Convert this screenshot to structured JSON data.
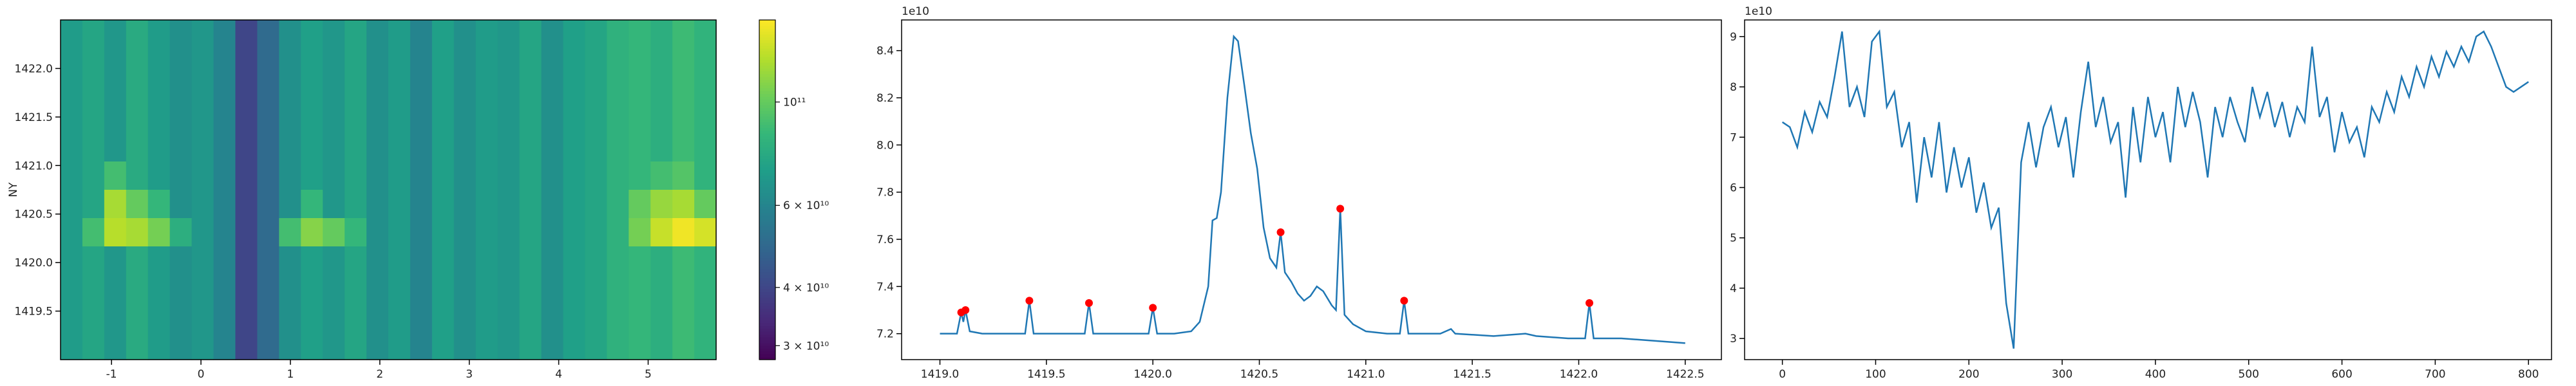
{
  "chart_data": [
    {
      "type": "heatmap",
      "ylabel": "NY",
      "colormap": "viridis",
      "color_scale": "log",
      "xlim": [
        -1.57,
        5.76
      ],
      "ylim": [
        1419.0,
        1422.5
      ],
      "xticks": [
        -1,
        0,
        1,
        2,
        3,
        4,
        5
      ],
      "yticks": [
        1419.5,
        {
          "value": 1420,
          "label": "1420.0"
        },
        1420.5,
        {
          "value": 1421,
          "label": "1421.0"
        },
        1421.5,
        {
          "value": 1422,
          "label": "1422.0"
        }
      ],
      "clim": [
        28000000000.0,
        150000000000.0
      ],
      "colorbar_ticks": [
        {
          "value": 30000000000.0,
          "label": "3 × 10¹⁰"
        },
        {
          "value": 40000000000.0,
          "label": "4 × 10¹⁰"
        },
        {
          "value": 60000000000.0,
          "label": "6 × 10¹⁰"
        },
        {
          "value": 100000000000.0,
          "label": "10¹¹"
        }
      ],
      "z": [
        [
          70000000000.0,
          75000000000.0,
          68000000000.0,
          78000000000.0,
          70000000000.0,
          65000000000.0,
          68000000000.0,
          60000000000.0,
          40000000000.0,
          50000000000.0,
          65000000000.0,
          72000000000.0,
          68000000000.0,
          75000000000.0,
          65000000000.0,
          70000000000.0,
          60000000000.0,
          72000000000.0,
          65000000000.0,
          70000000000.0,
          68000000000.0,
          75000000000.0,
          65000000000.0,
          72000000000.0,
          75000000000.0,
          82000000000.0,
          85000000000.0,
          80000000000.0,
          88000000000.0,
          83000000000.0
        ],
        [
          70000000000.0,
          75000000000.0,
          68000000000.0,
          78000000000.0,
          70000000000.0,
          65000000000.0,
          68000000000.0,
          60000000000.0,
          40000000000.0,
          50000000000.0,
          65000000000.0,
          72000000000.0,
          68000000000.0,
          75000000000.0,
          65000000000.0,
          70000000000.0,
          60000000000.0,
          72000000000.0,
          65000000000.0,
          70000000000.0,
          68000000000.0,
          75000000000.0,
          65000000000.0,
          72000000000.0,
          75000000000.0,
          82000000000.0,
          85000000000.0,
          80000000000.0,
          88000000000.0,
          83000000000.0
        ],
        [
          70000000000.0,
          75000000000.0,
          68000000000.0,
          78000000000.0,
          70000000000.0,
          65000000000.0,
          68000000000.0,
          60000000000.0,
          40000000000.0,
          50000000000.0,
          65000000000.0,
          72000000000.0,
          68000000000.0,
          75000000000.0,
          65000000000.0,
          70000000000.0,
          60000000000.0,
          72000000000.0,
          65000000000.0,
          70000000000.0,
          68000000000.0,
          75000000000.0,
          65000000000.0,
          72000000000.0,
          75000000000.0,
          82000000000.0,
          85000000000.0,
          80000000000.0,
          88000000000.0,
          83000000000.0
        ],
        [
          70000000000.0,
          75000000000.0,
          68000000000.0,
          78000000000.0,
          70000000000.0,
          65000000000.0,
          68000000000.0,
          60000000000.0,
          40000000000.0,
          50000000000.0,
          65000000000.0,
          72000000000.0,
          68000000000.0,
          75000000000.0,
          65000000000.0,
          70000000000.0,
          60000000000.0,
          72000000000.0,
          65000000000.0,
          70000000000.0,
          68000000000.0,
          75000000000.0,
          65000000000.0,
          72000000000.0,
          75000000000.0,
          82000000000.0,
          85000000000.0,
          80000000000.0,
          88000000000.0,
          83000000000.0
        ],
        [
          70000000000.0,
          75000000000.0,
          68000000000.0,
          78000000000.0,
          70000000000.0,
          65000000000.0,
          68000000000.0,
          60000000000.0,
          40000000000.0,
          50000000000.0,
          65000000000.0,
          72000000000.0,
          68000000000.0,
          75000000000.0,
          65000000000.0,
          70000000000.0,
          60000000000.0,
          72000000000.0,
          65000000000.0,
          70000000000.0,
          68000000000.0,
          75000000000.0,
          65000000000.0,
          72000000000.0,
          75000000000.0,
          82000000000.0,
          85000000000.0,
          80000000000.0,
          88000000000.0,
          83000000000.0
        ],
        [
          70000000000.0,
          75000000000.0,
          90000000000.0,
          78000000000.0,
          70000000000.0,
          65000000000.0,
          68000000000.0,
          60000000000.0,
          40000000000.0,
          50000000000.0,
          65000000000.0,
          72000000000.0,
          68000000000.0,
          75000000000.0,
          65000000000.0,
          70000000000.0,
          60000000000.0,
          72000000000.0,
          65000000000.0,
          70000000000.0,
          68000000000.0,
          75000000000.0,
          65000000000.0,
          72000000000.0,
          75000000000.0,
          82000000000.0,
          85000000000.0,
          90000000000.0,
          95000000000.0,
          83000000000.0
        ],
        [
          70000000000.0,
          75000000000.0,
          120000000000.0,
          100000000000.0,
          85000000000.0,
          65000000000.0,
          68000000000.0,
          60000000000.0,
          40000000000.0,
          50000000000.0,
          65000000000.0,
          85000000000.0,
          68000000000.0,
          75000000000.0,
          65000000000.0,
          70000000000.0,
          60000000000.0,
          72000000000.0,
          65000000000.0,
          70000000000.0,
          68000000000.0,
          75000000000.0,
          65000000000.0,
          72000000000.0,
          75000000000.0,
          82000000000.0,
          100000000000.0,
          115000000000.0,
          120000000000.0,
          100000000000.0
        ],
        [
          70000000000.0,
          90000000000.0,
          125000000000.0,
          120000000000.0,
          105000000000.0,
          80000000000.0,
          68000000000.0,
          60000000000.0,
          40000000000.0,
          50000000000.0,
          90000000000.0,
          110000000000.0,
          100000000000.0,
          85000000000.0,
          65000000000.0,
          70000000000.0,
          60000000000.0,
          72000000000.0,
          65000000000.0,
          70000000000.0,
          68000000000.0,
          75000000000.0,
          65000000000.0,
          72000000000.0,
          75000000000.0,
          82000000000.0,
          105000000000.0,
          130000000000.0,
          145000000000.0,
          135000000000.0
        ],
        [
          70000000000.0,
          75000000000.0,
          68000000000.0,
          78000000000.0,
          70000000000.0,
          65000000000.0,
          68000000000.0,
          60000000000.0,
          40000000000.0,
          50000000000.0,
          65000000000.0,
          72000000000.0,
          68000000000.0,
          75000000000.0,
          65000000000.0,
          70000000000.0,
          60000000000.0,
          72000000000.0,
          65000000000.0,
          70000000000.0,
          68000000000.0,
          75000000000.0,
          65000000000.0,
          72000000000.0,
          75000000000.0,
          82000000000.0,
          85000000000.0,
          80000000000.0,
          88000000000.0,
          83000000000.0
        ],
        [
          70000000000.0,
          75000000000.0,
          68000000000.0,
          78000000000.0,
          70000000000.0,
          65000000000.0,
          68000000000.0,
          60000000000.0,
          40000000000.0,
          50000000000.0,
          65000000000.0,
          72000000000.0,
          68000000000.0,
          75000000000.0,
          65000000000.0,
          70000000000.0,
          60000000000.0,
          72000000000.0,
          65000000000.0,
          70000000000.0,
          68000000000.0,
          75000000000.0,
          65000000000.0,
          72000000000.0,
          75000000000.0,
          82000000000.0,
          85000000000.0,
          80000000000.0,
          88000000000.0,
          83000000000.0
        ],
        [
          70000000000.0,
          75000000000.0,
          68000000000.0,
          78000000000.0,
          70000000000.0,
          65000000000.0,
          68000000000.0,
          60000000000.0,
          40000000000.0,
          50000000000.0,
          65000000000.0,
          72000000000.0,
          68000000000.0,
          75000000000.0,
          65000000000.0,
          70000000000.0,
          60000000000.0,
          72000000000.0,
          65000000000.0,
          70000000000.0,
          68000000000.0,
          75000000000.0,
          65000000000.0,
          72000000000.0,
          75000000000.0,
          82000000000.0,
          85000000000.0,
          80000000000.0,
          88000000000.0,
          83000000000.0
        ],
        [
          70000000000.0,
          75000000000.0,
          68000000000.0,
          78000000000.0,
          70000000000.0,
          65000000000.0,
          68000000000.0,
          60000000000.0,
          40000000000.0,
          50000000000.0,
          65000000000.0,
          72000000000.0,
          68000000000.0,
          75000000000.0,
          65000000000.0,
          70000000000.0,
          60000000000.0,
          72000000000.0,
          65000000000.0,
          70000000000.0,
          68000000000.0,
          75000000000.0,
          65000000000.0,
          72000000000.0,
          75000000000.0,
          82000000000.0,
          85000000000.0,
          80000000000.0,
          88000000000.0,
          83000000000.0
        ]
      ]
    },
    {
      "type": "line",
      "offset_label": "1e10",
      "xlim": [
        1418.82,
        1422.67
      ],
      "ylim": [
        7.09,
        8.53
      ],
      "xticks": [
        {
          "value": 1419,
          "label": "1419.0"
        },
        1419.5,
        {
          "value": 1420,
          "label": "1420.0"
        },
        1420.5,
        {
          "value": 1421,
          "label": "1421.0"
        },
        1421.5,
        {
          "value": 1422,
          "label": "1422.0"
        },
        1422.5
      ],
      "yticks": [
        7.2,
        7.4,
        7.6,
        7.8,
        {
          "value": 8,
          "label": "8.0"
        },
        8.2,
        8.4
      ],
      "x": [
        1419.0,
        1419.08,
        1419.1,
        1419.11,
        1419.12,
        1419.14,
        1419.2,
        1419.3,
        1419.4,
        1419.42,
        1419.44,
        1419.55,
        1419.68,
        1419.7,
        1419.72,
        1419.85,
        1419.98,
        1420.0,
        1420.02,
        1420.1,
        1420.18,
        1420.22,
        1420.26,
        1420.28,
        1420.3,
        1420.32,
        1420.35,
        1420.38,
        1420.4,
        1420.43,
        1420.46,
        1420.49,
        1420.52,
        1420.55,
        1420.58,
        1420.6,
        1420.62,
        1420.65,
        1420.68,
        1420.71,
        1420.74,
        1420.77,
        1420.8,
        1420.84,
        1420.86,
        1420.88,
        1420.9,
        1420.94,
        1421.0,
        1421.1,
        1421.16,
        1421.18,
        1421.2,
        1421.35,
        1421.4,
        1421.42,
        1421.6,
        1421.75,
        1421.8,
        1421.95,
        1422.03,
        1422.05,
        1422.07,
        1422.2,
        1422.35,
        1422.5
      ],
      "series": [
        {
          "color": "#1f77b4",
          "values": [
            7.2,
            7.2,
            7.29,
            7.25,
            7.3,
            7.21,
            7.2,
            7.2,
            7.2,
            7.34,
            7.2,
            7.2,
            7.2,
            7.33,
            7.2,
            7.2,
            7.2,
            7.31,
            7.2,
            7.2,
            7.21,
            7.25,
            7.4,
            7.68,
            7.69,
            7.8,
            8.2,
            8.46,
            8.44,
            8.25,
            8.05,
            7.9,
            7.65,
            7.52,
            7.48,
            7.63,
            7.46,
            7.42,
            7.37,
            7.34,
            7.36,
            7.4,
            7.38,
            7.32,
            7.3,
            7.73,
            7.28,
            7.24,
            7.21,
            7.2,
            7.2,
            7.34,
            7.2,
            7.2,
            7.22,
            7.2,
            7.19,
            7.2,
            7.19,
            7.18,
            7.18,
            7.33,
            7.18,
            7.18,
            7.17,
            7.16
          ]
        }
      ],
      "markers": {
        "color": "#ff0000",
        "x": [
          1419.1,
          1419.12,
          1419.42,
          1419.7,
          1420.0,
          1420.6,
          1420.88,
          1421.18,
          1422.05
        ],
        "values": [
          7.29,
          7.3,
          7.34,
          7.33,
          7.31,
          7.63,
          7.73,
          7.34,
          7.33
        ]
      }
    },
    {
      "type": "line",
      "offset_label": "1e10",
      "xlim": [
        -40.5,
        824.7
      ],
      "ylim": [
        2.58,
        9.33
      ],
      "xticks": [
        0,
        100,
        200,
        300,
        400,
        500,
        600,
        700,
        800
      ],
      "yticks": [
        3,
        4,
        5,
        6,
        7,
        8,
        9
      ],
      "x": [
        0,
        8,
        16,
        24,
        32,
        40,
        48,
        56,
        64,
        72,
        80,
        88,
        96,
        104,
        112,
        120,
        128,
        136,
        144,
        152,
        160,
        168,
        176,
        184,
        192,
        200,
        208,
        216,
        224,
        232,
        240,
        248,
        256,
        264,
        272,
        280,
        288,
        296,
        304,
        312,
        320,
        328,
        336,
        344,
        352,
        360,
        368,
        376,
        384,
        392,
        400,
        408,
        416,
        424,
        432,
        440,
        448,
        456,
        464,
        472,
        480,
        488,
        496,
        504,
        512,
        520,
        528,
        536,
        544,
        552,
        560,
        568,
        576,
        584,
        592,
        600,
        608,
        616,
        624,
        632,
        640,
        648,
        656,
        664,
        672,
        680,
        688,
        696,
        704,
        712,
        720,
        728,
        736,
        744,
        752,
        760,
        768,
        776,
        784,
        792,
        800
      ],
      "series": [
        {
          "color": "#1f77b4",
          "values": [
            7.3,
            7.2,
            6.8,
            7.5,
            7.1,
            7.7,
            7.4,
            8.2,
            9.1,
            7.6,
            8.0,
            7.4,
            8.9,
            9.1,
            7.6,
            7.9,
            6.8,
            7.3,
            5.7,
            7.0,
            6.2,
            7.3,
            5.9,
            6.8,
            6.0,
            6.6,
            5.5,
            6.1,
            5.2,
            5.6,
            3.7,
            2.8,
            6.5,
            7.3,
            6.4,
            7.2,
            7.6,
            6.8,
            7.4,
            6.2,
            7.5,
            8.5,
            7.2,
            7.8,
            6.9,
            7.3,
            5.8,
            7.6,
            6.5,
            7.8,
            7.0,
            7.5,
            6.5,
            8.0,
            7.2,
            7.9,
            7.3,
            6.2,
            7.6,
            7.0,
            7.8,
            7.3,
            6.9,
            8.0,
            7.4,
            7.9,
            7.2,
            7.7,
            7.0,
            7.6,
            7.3,
            8.8,
            7.4,
            7.8,
            6.7,
            7.5,
            6.9,
            7.2,
            6.6,
            7.6,
            7.3,
            7.9,
            7.5,
            8.2,
            7.8,
            8.4,
            8.0,
            8.6,
            8.2,
            8.7,
            8.4,
            8.8,
            8.5,
            9.0,
            9.1,
            8.8,
            8.4,
            8.0,
            7.9,
            8.0,
            8.1
          ]
        }
      ]
    }
  ]
}
